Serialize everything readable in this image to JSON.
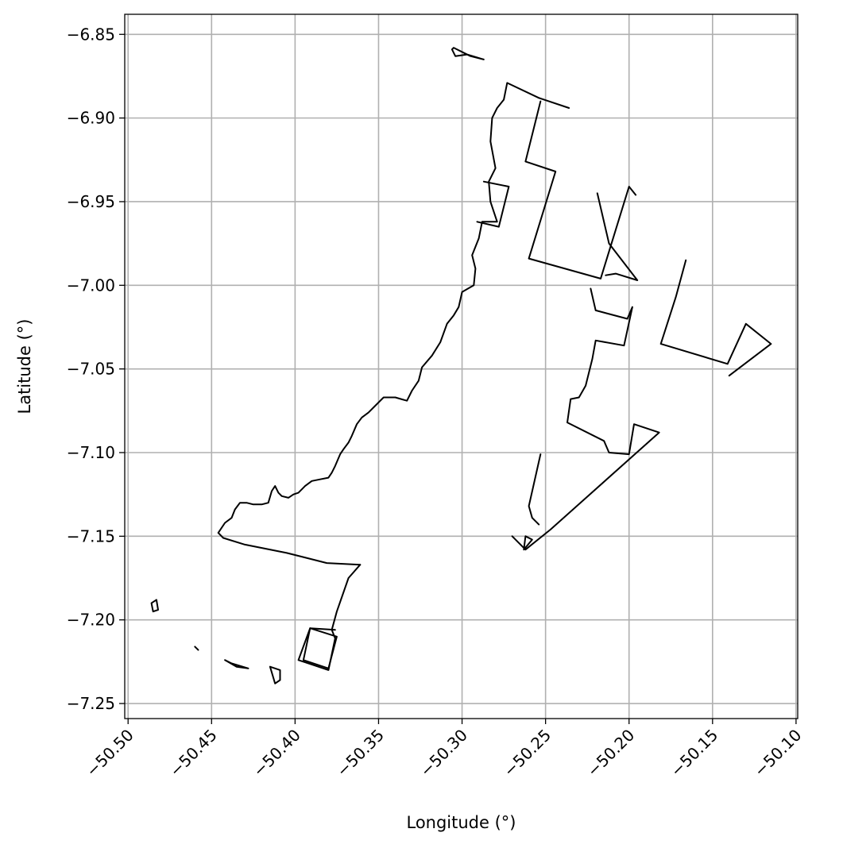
{
  "chart_data": {
    "type": "map-outline",
    "title": "",
    "xlabel": "Longitude (°)",
    "ylabel": "Latitude (°)",
    "xlim": [
      -50.502,
      -50.099
    ],
    "ylim": [
      -7.259,
      -6.838
    ],
    "xticks": [
      {
        "value": -50.5,
        "label": "−50.50"
      },
      {
        "value": -50.45,
        "label": "−50.45"
      },
      {
        "value": -50.4,
        "label": "−50.40"
      },
      {
        "value": -50.35,
        "label": "−50.35"
      },
      {
        "value": -50.3,
        "label": "−50.30"
      },
      {
        "value": -50.25,
        "label": "−50.25"
      },
      {
        "value": -50.2,
        "label": "−50.20"
      },
      {
        "value": -50.15,
        "label": "−50.15"
      },
      {
        "value": -50.1,
        "label": "−50.10"
      }
    ],
    "yticks": [
      {
        "value": -6.85,
        "label": "−6.85"
      },
      {
        "value": -6.9,
        "label": "−6.90"
      },
      {
        "value": -6.95,
        "label": "−6.95"
      },
      {
        "value": -7.0,
        "label": "−7.00"
      },
      {
        "value": -7.05,
        "label": "−7.05"
      },
      {
        "value": -7.1,
        "label": "−7.10"
      },
      {
        "value": -7.15,
        "label": "−7.15"
      },
      {
        "value": -7.2,
        "label": "−7.20"
      },
      {
        "value": -7.25,
        "label": "−7.25"
      }
    ],
    "grid": true,
    "colors": {
      "outline": "#000000",
      "grid": "#b0b0b0",
      "axes": "#000000"
    },
    "polylines": [
      {
        "name": "main-boundary",
        "closed": false,
        "points": [
          [
            -50.34,
            -7.067
          ],
          [
            -50.347,
            -7.067
          ],
          [
            -50.352,
            -7.072
          ],
          [
            -50.356,
            -7.076
          ],
          [
            -50.36,
            -7.079
          ],
          [
            -50.363,
            -7.083
          ],
          [
            -50.366,
            -7.09
          ],
          [
            -50.368,
            -7.094
          ],
          [
            -50.371,
            -7.098
          ],
          [
            -50.373,
            -7.101
          ],
          [
            -50.376,
            -7.108
          ],
          [
            -50.378,
            -7.112
          ],
          [
            -50.38,
            -7.115
          ],
          [
            -50.385,
            -7.116
          ],
          [
            -50.39,
            -7.117
          ],
          [
            -50.394,
            -7.12
          ],
          [
            -50.398,
            -7.124
          ],
          [
            -50.401,
            -7.125
          ],
          [
            -50.404,
            -7.127
          ],
          [
            -50.408,
            -7.126
          ],
          [
            -50.41,
            -7.124
          ],
          [
            -50.412,
            -7.12
          ],
          [
            -50.414,
            -7.123
          ],
          [
            -50.416,
            -7.13
          ],
          [
            -50.42,
            -7.131
          ],
          [
            -50.425,
            -7.131
          ],
          [
            -50.429,
            -7.13
          ],
          [
            -50.433,
            -7.13
          ],
          [
            -50.436,
            -7.134
          ],
          [
            -50.438,
            -7.139
          ],
          [
            -50.442,
            -7.142
          ],
          [
            -50.446,
            -7.148
          ],
          [
            -50.443,
            -7.151
          ],
          [
            -50.43,
            -7.155
          ],
          [
            -50.405,
            -7.16
          ],
          [
            -50.381,
            -7.166
          ],
          [
            -50.361,
            -7.167
          ]
        ]
      },
      {
        "name": "coast-west",
        "closed": false,
        "points": [
          [
            -50.34,
            -7.067
          ],
          [
            -50.333,
            -7.069
          ],
          [
            -50.33,
            -7.063
          ],
          [
            -50.326,
            -7.057
          ],
          [
            -50.324,
            -7.049
          ],
          [
            -50.318,
            -7.042
          ],
          [
            -50.313,
            -7.034
          ],
          [
            -50.309,
            -7.023
          ],
          [
            -50.305,
            -7.018
          ],
          [
            -50.302,
            -7.013
          ],
          [
            -50.3,
            -7.004
          ],
          [
            -50.293,
            -7.0
          ],
          [
            -50.292,
            -6.99
          ],
          [
            -50.294,
            -6.982
          ],
          [
            -50.29,
            -6.972
          ],
          [
            -50.288,
            -6.962
          ],
          [
            -50.279,
            -6.962
          ],
          [
            -50.283,
            -6.95
          ],
          [
            -50.284,
            -6.938
          ],
          [
            -50.28,
            -6.93
          ],
          [
            -50.283,
            -6.914
          ],
          [
            -50.282,
            -6.9
          ],
          [
            -50.279,
            -6.894
          ],
          [
            -50.275,
            -6.889
          ],
          [
            -50.273,
            -6.879
          ],
          [
            -50.254,
            -6.888
          ]
        ]
      },
      {
        "name": "north-segment",
        "closed": false,
        "points": [
          [
            -50.254,
            -6.888
          ],
          [
            -50.236,
            -6.894
          ]
        ]
      },
      {
        "name": "central-plot",
        "closed": false,
        "points": [
          [
            -50.253,
            -6.89
          ],
          [
            -50.262,
            -6.926
          ],
          [
            -50.244,
            -6.932
          ],
          [
            -50.26,
            -6.984
          ],
          [
            -50.217,
            -6.996
          ],
          [
            -50.2,
            -6.941
          ],
          [
            -50.196,
            -6.946
          ]
        ]
      },
      {
        "name": "central-lines",
        "closed": false,
        "points": [
          [
            -50.219,
            -6.945
          ],
          [
            -50.212,
            -6.975
          ],
          [
            -50.195,
            -6.997
          ],
          [
            -50.208,
            -6.993
          ],
          [
            -50.214,
            -6.994
          ]
        ]
      },
      {
        "name": "inner-west",
        "closed": false,
        "points": [
          [
            -50.287,
            -6.938
          ],
          [
            -50.272,
            -6.941
          ],
          [
            -50.278,
            -6.965
          ],
          [
            -50.291,
            -6.962
          ]
        ]
      },
      {
        "name": "eastern-strip",
        "closed": false,
        "points": [
          [
            -50.223,
            -7.002
          ],
          [
            -50.22,
            -7.015
          ],
          [
            -50.201,
            -7.02
          ],
          [
            -50.198,
            -7.013
          ],
          [
            -50.203,
            -7.036
          ],
          [
            -50.22,
            -7.033
          ],
          [
            -50.222,
            -7.044
          ],
          [
            -50.226,
            -7.06
          ],
          [
            -50.23,
            -7.067
          ],
          [
            -50.235,
            -7.068
          ],
          [
            -50.237,
            -7.082
          ],
          [
            -50.215,
            -7.093
          ],
          [
            -50.212,
            -7.1
          ],
          [
            -50.2,
            -7.101
          ],
          [
            -50.197,
            -7.083
          ],
          [
            -50.182,
            -7.088
          ],
          [
            -50.247,
            -7.146
          ],
          [
            -50.262,
            -7.158
          ],
          [
            -50.27,
            -7.15
          ]
        ]
      },
      {
        "name": "south-arm",
        "closed": false,
        "points": [
          [
            -50.253,
            -7.101
          ],
          [
            -50.26,
            -7.132
          ],
          [
            -50.258,
            -7.139
          ],
          [
            -50.254,
            -7.143
          ]
        ]
      },
      {
        "name": "east-wedge",
        "closed": false,
        "points": [
          [
            -50.166,
            -6.985
          ],
          [
            -50.172,
            -7.007
          ],
          [
            -50.181,
            -7.035
          ],
          [
            -50.141,
            -7.047
          ],
          [
            -50.13,
            -7.023
          ],
          [
            -50.115,
            -7.035
          ],
          [
            -50.14,
            -7.054
          ]
        ]
      },
      {
        "name": "southern-boundary",
        "closed": false,
        "points": [
          [
            -50.361,
            -7.167
          ],
          [
            -50.368,
            -7.175
          ],
          [
            -50.375,
            -7.195
          ],
          [
            -50.378,
            -7.206
          ],
          [
            -50.376,
            -7.211
          ],
          [
            -50.38,
            -7.23
          ],
          [
            -50.398,
            -7.224
          ],
          [
            -50.391,
            -7.205
          ],
          [
            -50.376,
            -7.206
          ]
        ]
      },
      {
        "name": "rect-a",
        "closed": true,
        "points": [
          [
            -50.395,
            -7.224
          ],
          [
            -50.391,
            -7.205
          ],
          [
            -50.375,
            -7.21
          ],
          [
            -50.38,
            -7.229
          ]
        ]
      },
      {
        "name": "north-islet",
        "closed": true,
        "points": [
          [
            -50.306,
            -6.859
          ],
          [
            -50.304,
            -6.863
          ],
          [
            -50.297,
            -6.862
          ],
          [
            -50.287,
            -6.865
          ],
          [
            -50.295,
            -6.863
          ],
          [
            -50.305,
            -6.858
          ]
        ]
      },
      {
        "name": "west-islet",
        "closed": true,
        "points": [
          [
            -50.486,
            -7.19
          ],
          [
            -50.483,
            -7.188
          ],
          [
            -50.482,
            -7.194
          ],
          [
            -50.485,
            -7.195
          ]
        ]
      },
      {
        "name": "southwest-islet-a",
        "closed": false,
        "points": [
          [
            -50.46,
            -7.216
          ],
          [
            -50.458,
            -7.218
          ]
        ]
      },
      {
        "name": "southwest-islet-b",
        "closed": true,
        "points": [
          [
            -50.442,
            -7.224
          ],
          [
            -50.435,
            -7.228
          ],
          [
            -50.428,
            -7.229
          ],
          [
            -50.438,
            -7.226
          ]
        ]
      },
      {
        "name": "southwest-islet-c",
        "closed": true,
        "points": [
          [
            -50.415,
            -7.228
          ],
          [
            -50.412,
            -7.238
          ],
          [
            -50.409,
            -7.236
          ],
          [
            -50.409,
            -7.23
          ]
        ]
      },
      {
        "name": "south-tip",
        "closed": true,
        "points": [
          [
            -50.263,
            -7.158
          ],
          [
            -50.258,
            -7.152
          ],
          [
            -50.262,
            -7.15
          ]
        ]
      }
    ]
  }
}
